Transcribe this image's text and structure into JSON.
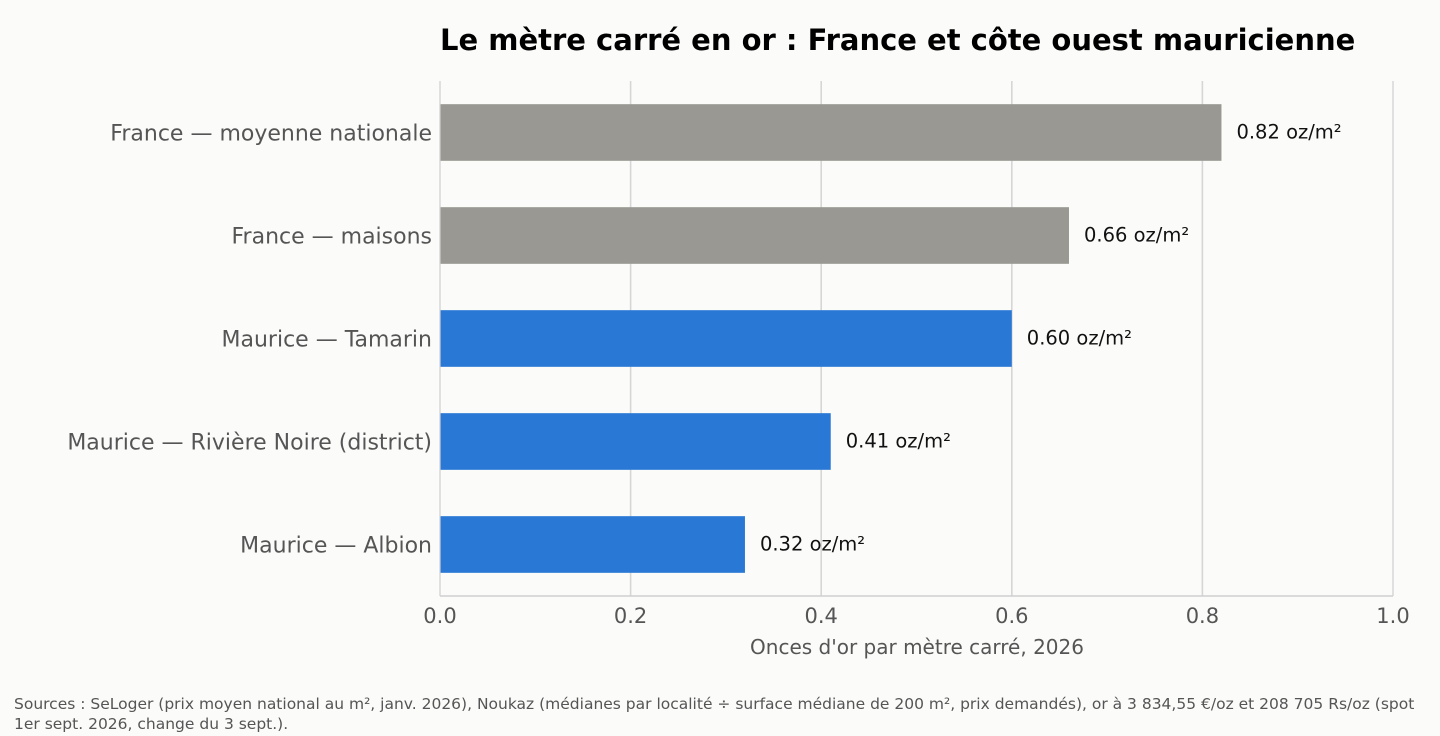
{
  "chart_data": {
    "type": "bar",
    "orientation": "horizontal",
    "title": "Le mètre carré en or : France et côte ouest mauricienne",
    "xlabel": "Onces d'or par mètre carré, 2026",
    "ylabel": "",
    "xlim": [
      0,
      1.0
    ],
    "xticks": [
      "0.0",
      "0.2",
      "0.4",
      "0.6",
      "0.8",
      "1.0"
    ],
    "grid": "vertical",
    "categories": [
      "France — moyenne nationale",
      "France — maisons",
      "Maurice — Tamarin",
      "Maurice — Rivière Noire (district)",
      "Maurice — Albion"
    ],
    "values": [
      0.82,
      0.66,
      0.6,
      0.41,
      0.32
    ],
    "value_labels": [
      "0.82 oz/m²",
      "0.66 oz/m²",
      "0.60 oz/m²",
      "0.41 oz/m²",
      "0.32 oz/m²"
    ],
    "bar_colors": [
      "#999893",
      "#999893",
      "#2a78d5",
      "#2a78d5",
      "#2a78d5"
    ]
  },
  "footnote": "Sources : SeLoger (prix moyen national au m², janv. 2026), Noukaz (médianes par localité ÷ surface médiane de 200 m², prix demandés), or à 3 834,55 €/oz et 208 705 Rs/oz (spot 1er sept. 2026, change du 3 sept.).",
  "colors": {
    "france": "#999893",
    "maurice": "#2a78d5",
    "grid": "#d6d6d6",
    "axis": "#cfcfcf",
    "text": "#555555",
    "title": "#000000",
    "background": "#fbfbfa"
  }
}
